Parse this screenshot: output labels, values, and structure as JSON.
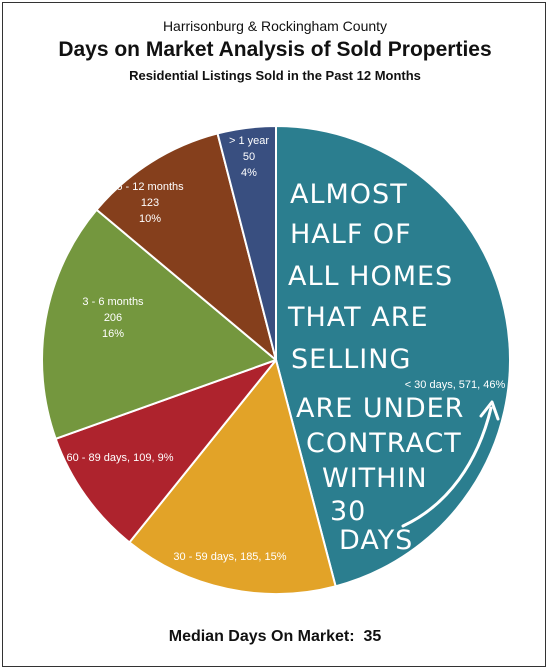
{
  "header": {
    "region": "Harrisonburg & Rockingham County",
    "title": "Days on Market Analysis of Sold Properties",
    "subtitle": "Residential Listings Sold in the Past 12 Months"
  },
  "footer": {
    "median_label": "Median Days On Market:",
    "median_value": "35"
  },
  "annotation": {
    "lines": [
      "ALMOST",
      "HALF OF",
      "ALL HOMES",
      "THAT ARE",
      "SELLING",
      "ARE UNDER",
      "CONTRACT",
      "WITHIN",
      "30",
      "DAYS"
    ]
  },
  "chart_data": {
    "type": "pie",
    "title": "Days on Market Analysis of Sold Properties",
    "slices": [
      {
        "name": "< 30 days",
        "value": 571,
        "percent": "46%",
        "color": "#2b7e8f",
        "label": [
          "< 30 days, 571, 46%"
        ]
      },
      {
        "name": "30 - 59 days",
        "value": 185,
        "percent": "15%",
        "color": "#e2a328",
        "label": [
          "30 - 59 days, 185, 15%"
        ]
      },
      {
        "name": "60 - 89 days",
        "value": 109,
        "percent": "9%",
        "color": "#ae232d",
        "label": [
          "60 - 89 days, 109, 9%"
        ]
      },
      {
        "name": "3 - 6 months",
        "value": 206,
        "percent": "16%",
        "color": "#74973e",
        "label": [
          "3 - 6 months",
          "206",
          "16%"
        ]
      },
      {
        "name": "6 - 12 months",
        "value": 123,
        "percent": "10%",
        "color": "#853f1c",
        "label": [
          "6 - 12 months",
          "123",
          "10%"
        ]
      },
      {
        "name": "> 1 year",
        "value": 50,
        "percent": "4%",
        "color": "#394f80",
        "label": [
          "> 1 year",
          "50",
          "4%"
        ]
      }
    ]
  }
}
